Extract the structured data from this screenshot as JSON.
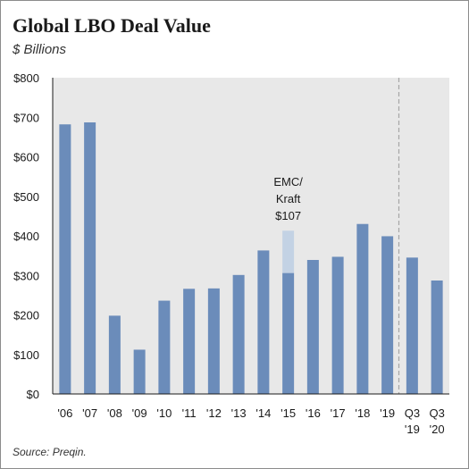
{
  "title": "Global LBO Deal Value",
  "subtitle": "$ Billions",
  "source": "Source: Preqin.",
  "chart_data": {
    "type": "bar",
    "categories": [
      "'06",
      "'07",
      "'08",
      "'09",
      "'10",
      "'11",
      "'12",
      "'13",
      "'14",
      "'15",
      "'16",
      "'17",
      "'18",
      "'19",
      "Q3 '19",
      "Q3 '20"
    ],
    "category_lines": [
      [
        "'06"
      ],
      [
        "'07"
      ],
      [
        "'08"
      ],
      [
        "'09"
      ],
      [
        "'10"
      ],
      [
        "'11"
      ],
      [
        "'12"
      ],
      [
        "'13"
      ],
      [
        "'14"
      ],
      [
        "'15"
      ],
      [
        "'16"
      ],
      [
        "'17"
      ],
      [
        "'18"
      ],
      [
        "'19"
      ],
      [
        "Q3",
        "'19"
      ],
      [
        "Q3",
        "'20"
      ]
    ],
    "series": [
      {
        "values": [
          682,
          687,
          198,
          112,
          236,
          266,
          267,
          301,
          363,
          306,
          339,
          347,
          430,
          399,
          345,
          287
        ],
        "color": "#6b8cba"
      },
      {
        "values": [
          0,
          0,
          0,
          0,
          0,
          0,
          0,
          0,
          0,
          107,
          0,
          0,
          0,
          0,
          0,
          0
        ],
        "color": "#c3d2e4"
      }
    ],
    "stacked": true,
    "ylim": [
      0,
      800
    ],
    "yticks": [
      0,
      100,
      200,
      300,
      400,
      500,
      600,
      700,
      800
    ],
    "ytick_labels": [
      "$0",
      "$100",
      "$200",
      "$300",
      "$400",
      "$500",
      "$600",
      "$700",
      "$800"
    ],
    "grid": false,
    "plot_background": "#e8e8e8",
    "divider_after_category": "'19",
    "annotation": {
      "lines": [
        "EMC/",
        "Kraft",
        "$107"
      ],
      "category": "'15"
    }
  }
}
